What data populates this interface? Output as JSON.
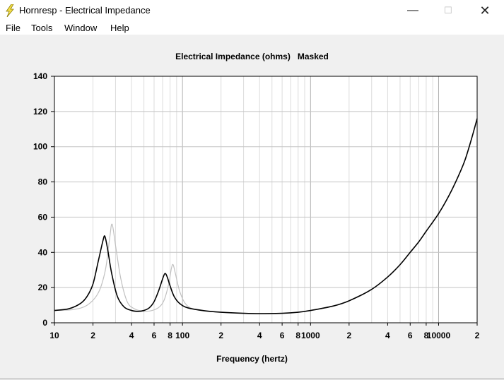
{
  "window": {
    "title": "Hornresp - Electrical Impedance",
    "icon": "lightning-bolt-icon",
    "controls": {
      "minimize": "—",
      "maximize": "☐",
      "close": "✕"
    }
  },
  "menu": [
    "File",
    "Tools",
    "Window",
    "Help"
  ],
  "chart_data": {
    "type": "line",
    "title": "Electrical Impedance (ohms)",
    "title_flag": "Masked",
    "xlabel": "Frequency (hertz)",
    "ylabel": "",
    "x_scale": "log",
    "xlim": [
      10,
      20000
    ],
    "ylim": [
      0,
      140
    ],
    "grid": true,
    "y_ticks": [
      0,
      20,
      40,
      60,
      80,
      100,
      120,
      140
    ],
    "x_ticks": [
      {
        "value": 10,
        "label": "10"
      },
      {
        "value": 20,
        "label": "2"
      },
      {
        "value": 40,
        "label": "4"
      },
      {
        "value": 60,
        "label": "6"
      },
      {
        "value": 80,
        "label": "8"
      },
      {
        "value": 100,
        "label": "100"
      },
      {
        "value": 200,
        "label": "2"
      },
      {
        "value": 400,
        "label": "4"
      },
      {
        "value": 600,
        "label": "6"
      },
      {
        "value": 800,
        "label": "8"
      },
      {
        "value": 1000,
        "label": "1000"
      },
      {
        "value": 2000,
        "label": "2"
      },
      {
        "value": 4000,
        "label": "4"
      },
      {
        "value": 6000,
        "label": "6"
      },
      {
        "value": 8000,
        "label": "8"
      },
      {
        "value": 10000,
        "label": "10000"
      },
      {
        "value": 20000,
        "label": "2"
      }
    ],
    "series": [
      {
        "color": "#000000",
        "points": [
          [
            10,
            7
          ],
          [
            13,
            8
          ],
          [
            16,
            11
          ],
          [
            18,
            15
          ],
          [
            20,
            22
          ],
          [
            22,
            35
          ],
          [
            24,
            47
          ],
          [
            24.8,
            49
          ],
          [
            26,
            42
          ],
          [
            28,
            28
          ],
          [
            31,
            15
          ],
          [
            35,
            9
          ],
          [
            40,
            7
          ],
          [
            45,
            6.5
          ],
          [
            50,
            7
          ],
          [
            55,
            8.5
          ],
          [
            60,
            12
          ],
          [
            65,
            18
          ],
          [
            70,
            25
          ],
          [
            73,
            28
          ],
          [
            76,
            26
          ],
          [
            80,
            21
          ],
          [
            86,
            15
          ],
          [
            95,
            11
          ],
          [
            110,
            8.5
          ],
          [
            150,
            6.8
          ],
          [
            200,
            6
          ],
          [
            300,
            5.4
          ],
          [
            400,
            5.2
          ],
          [
            600,
            5.4
          ],
          [
            800,
            6
          ],
          [
            1000,
            7
          ],
          [
            1500,
            9.5
          ],
          [
            2000,
            12.5
          ],
          [
            3000,
            19
          ],
          [
            4000,
            26
          ],
          [
            5000,
            33
          ],
          [
            6000,
            40
          ],
          [
            7000,
            46
          ],
          [
            8000,
            52
          ],
          [
            10000,
            62
          ],
          [
            12000,
            72
          ],
          [
            14000,
            82
          ],
          [
            16000,
            92
          ],
          [
            18000,
            104
          ],
          [
            20000,
            116
          ]
        ]
      },
      {
        "color": "#c0c0c0",
        "points": [
          [
            10,
            7
          ],
          [
            14,
            7.5
          ],
          [
            18,
            10
          ],
          [
            22,
            17
          ],
          [
            25,
            30
          ],
          [
            27,
            48
          ],
          [
            28.2,
            56
          ],
          [
            30,
            44
          ],
          [
            33,
            25
          ],
          [
            37,
            12
          ],
          [
            42,
            8
          ],
          [
            50,
            6.5
          ],
          [
            58,
            7
          ],
          [
            66,
            9
          ],
          [
            72,
            13
          ],
          [
            78,
            22
          ],
          [
            82,
            31
          ],
          [
            84.5,
            33
          ],
          [
            88,
            28
          ],
          [
            95,
            18
          ],
          [
            105,
            11
          ],
          [
            120,
            8
          ],
          [
            150,
            6.6
          ],
          [
            200,
            6
          ]
        ]
      }
    ]
  }
}
